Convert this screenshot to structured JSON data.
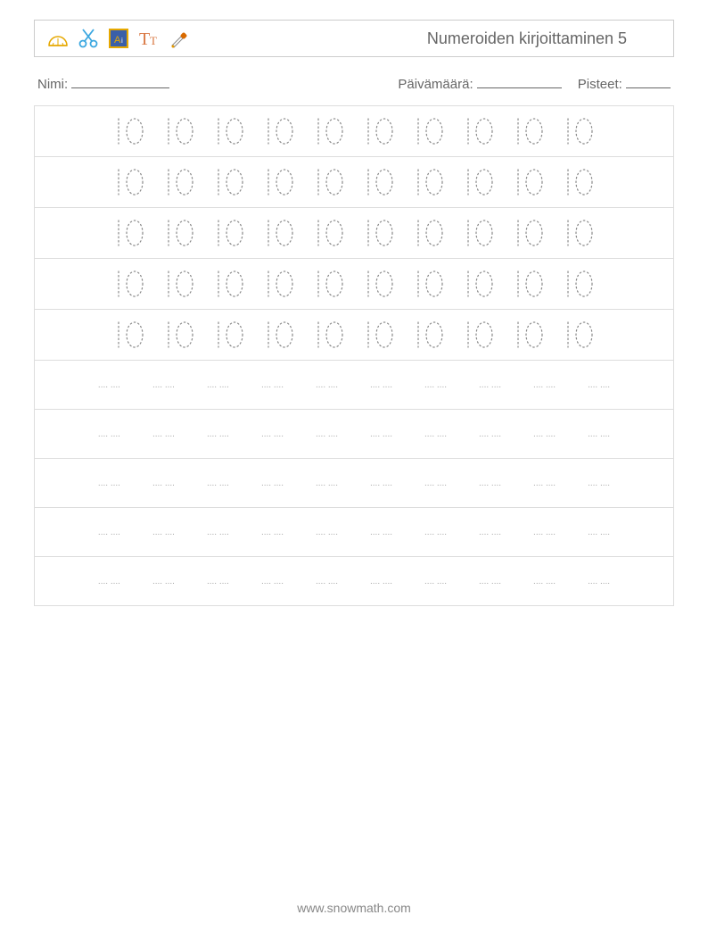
{
  "header": {
    "title": "Numeroiden kirjoittaminen 5",
    "icons": [
      "protractor",
      "scissors",
      "color-box",
      "text-tool",
      "eyedropper"
    ]
  },
  "info": {
    "name_label": "Nimi:",
    "date_label": "Päivämäärä:",
    "score_label": "Pisteet:",
    "name_blank_width": 110,
    "date_blank_width": 95,
    "score_blank_width": 50
  },
  "practice": {
    "traced_value": "10",
    "large_rows": 5,
    "small_rows": 5,
    "cells_per_row": 10,
    "large_fontsize": 36,
    "small_placeholder": ".... ....",
    "digit_color": "#888888",
    "border_color": "#dddddd"
  },
  "footer": {
    "url": "www.snowmath.com"
  }
}
